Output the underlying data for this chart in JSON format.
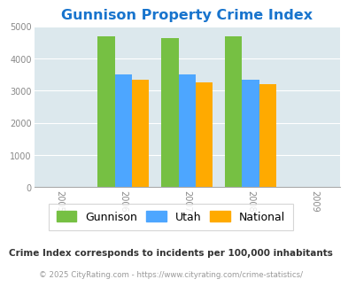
{
  "title": "Gunnison Property Crime Index",
  "title_color": "#1874cd",
  "years": [
    2005,
    2006,
    2007,
    2008,
    2009
  ],
  "bar_years": [
    2006,
    2007,
    2008
  ],
  "gunnison": [
    4700,
    4620,
    4700
  ],
  "utah": [
    3500,
    3500,
    3350
  ],
  "national": [
    3350,
    3250,
    3200
  ],
  "colors": {
    "gunnison": "#76c043",
    "utah": "#4da6ff",
    "national": "#ffaa00"
  },
  "ylim": [
    0,
    5000
  ],
  "yticks": [
    0,
    1000,
    2000,
    3000,
    4000,
    5000
  ],
  "bg_color": "#dce8ed",
  "fig_bg": "#ffffff",
  "legend_labels": [
    "Gunnison",
    "Utah",
    "National"
  ],
  "footer_note": "Crime Index corresponds to incidents per 100,000 inhabitants",
  "copyright": "© 2025 CityRating.com - https://www.cityrating.com/crime-statistics/",
  "bar_width": 0.27
}
